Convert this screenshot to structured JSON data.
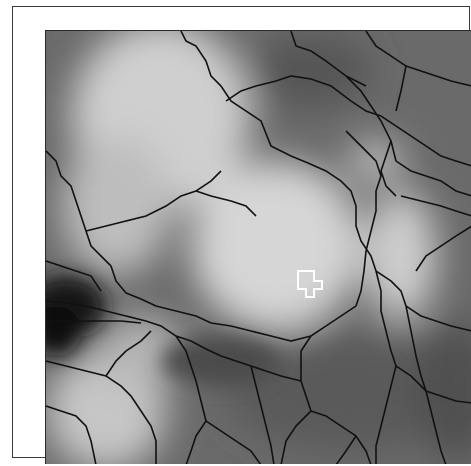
{
  "figure": {
    "image_kind": "superpixel-segmentation-grayscale",
    "colors": {
      "background": "#ffffff",
      "frame": "#3a3a3a",
      "boundary": "#111111",
      "selected_boundary": "#ffffff",
      "region_dark": "#1a1a1a",
      "region_mid": "#6e6e6e",
      "region_light": "#cfcfcf"
    }
  }
}
